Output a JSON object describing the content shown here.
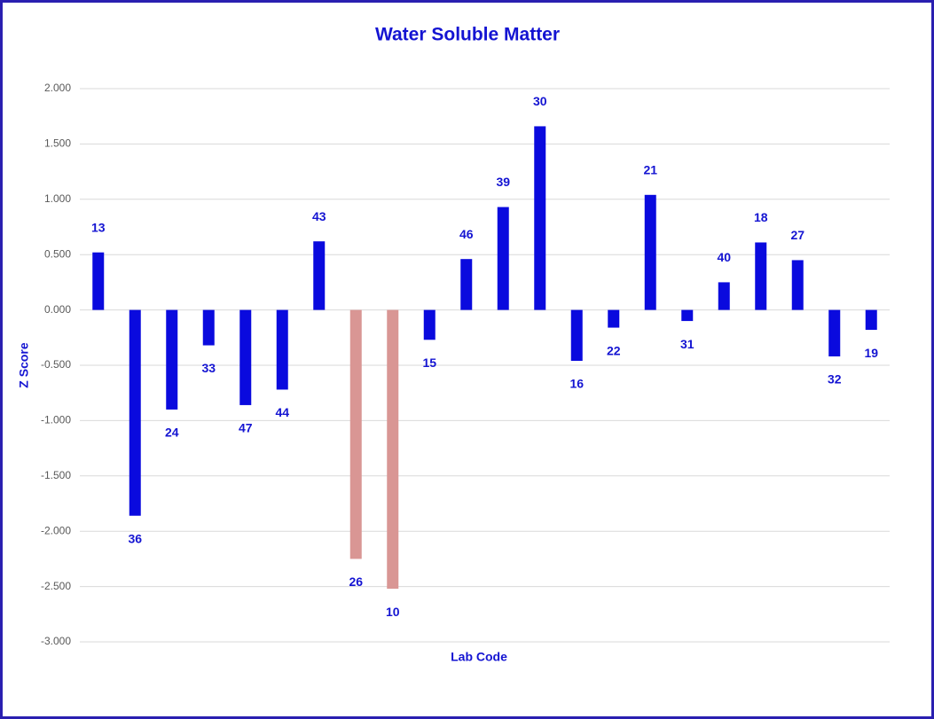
{
  "chart_data": {
    "type": "bar",
    "title": "Water Soluble Matter",
    "x_label": "Lab Code",
    "y_label": "Z Score",
    "categories": [
      "13",
      "36",
      "24",
      "33",
      "47",
      "44",
      "43",
      "26",
      "10",
      "15",
      "46",
      "39",
      "30",
      "16",
      "22",
      "21",
      "31",
      "40",
      "18",
      "27",
      "32",
      "19"
    ],
    "values": [
      0.52,
      -1.86,
      -0.9,
      -0.32,
      -0.86,
      -0.72,
      0.62,
      -2.25,
      -2.52,
      -0.27,
      0.46,
      0.93,
      1.66,
      -0.46,
      -0.16,
      1.04,
      -0.1,
      0.25,
      0.61,
      0.45,
      -0.42,
      -0.18
    ],
    "colors": [
      "#0a0ade",
      "#0a0ade",
      "#0a0ade",
      "#0a0ade",
      "#0a0ade",
      "#0a0ade",
      "#0a0ade",
      "#d99694",
      "#d99694",
      "#0a0ade",
      "#0a0ade",
      "#0a0ade",
      "#0a0ade",
      "#0a0ade",
      "#0a0ade",
      "#0a0ade",
      "#0a0ade",
      "#0a0ade",
      "#0a0ade",
      "#0a0ade",
      "#0a0ade",
      "#0a0ade"
    ],
    "ylim": [
      -3,
      2
    ],
    "yticks": [
      {
        "value": 2,
        "label": "2.000"
      },
      {
        "value": 1.5,
        "label": "1.500"
      },
      {
        "value": 1,
        "label": "1.000"
      },
      {
        "value": 0.5,
        "label": "0.500"
      },
      {
        "value": 0,
        "label": "0.000"
      },
      {
        "value": -0.5,
        "label": "-0.500"
      },
      {
        "value": -1,
        "label": "-1.000"
      },
      {
        "value": -1.5,
        "label": "-1.500"
      },
      {
        "value": -2,
        "label": "-2.000"
      },
      {
        "value": -2.5,
        "label": "-2.500"
      },
      {
        "value": -3,
        "label": "-3.000"
      }
    ],
    "grid": true
  }
}
